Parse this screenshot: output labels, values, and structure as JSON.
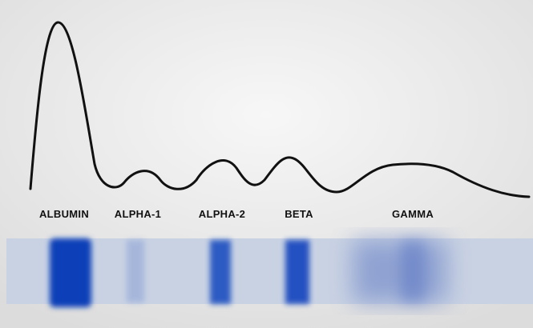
{
  "labels": [
    "ALBUMIN",
    "ALPHA-1",
    "ALPHA-2",
    "BETA",
    "GAMMA"
  ]
}
